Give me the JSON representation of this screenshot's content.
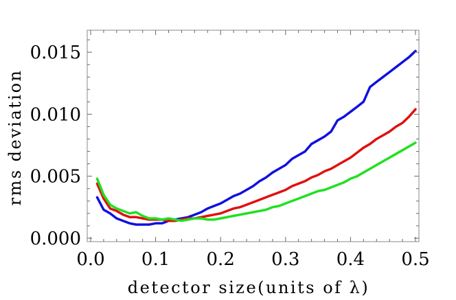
{
  "chart_data": {
    "type": "line",
    "title": "",
    "xlabel": "detector size(units of λ)",
    "ylabel": "rms deviation",
    "xlim": [
      0.0,
      0.5
    ],
    "ylim": [
      0.0,
      0.0165
    ],
    "x_ticks": [
      0.0,
      0.1,
      0.2,
      0.3,
      0.4,
      0.5
    ],
    "x_tick_labels": [
      "0.0",
      "0.1",
      "0.2",
      "0.3",
      "0.4",
      "0.5"
    ],
    "y_ticks": [
      0.0,
      0.005,
      0.01,
      0.015
    ],
    "y_tick_labels": [
      "0.000",
      "0.005",
      "0.010",
      "0.015"
    ],
    "grid": false,
    "legend": "none",
    "x": [
      0.01,
      0.02,
      0.03,
      0.04,
      0.05,
      0.06,
      0.07,
      0.08,
      0.09,
      0.1,
      0.11,
      0.12,
      0.13,
      0.14,
      0.15,
      0.16,
      0.17,
      0.18,
      0.19,
      0.2,
      0.21,
      0.22,
      0.23,
      0.24,
      0.25,
      0.26,
      0.27,
      0.28,
      0.29,
      0.3,
      0.31,
      0.32,
      0.33,
      0.34,
      0.35,
      0.36,
      0.37,
      0.38,
      0.39,
      0.4,
      0.41,
      0.42,
      0.43,
      0.44,
      0.45,
      0.46,
      0.47,
      0.48,
      0.49,
      0.5
    ],
    "series": [
      {
        "color": "#1010e0",
        "values": [
          0.0033,
          0.0023,
          0.002,
          0.0016,
          0.0014,
          0.0012,
          0.0011,
          0.0011,
          0.0011,
          0.0012,
          0.0012,
          0.0014,
          0.0015,
          0.0016,
          0.0017,
          0.0019,
          0.0021,
          0.0024,
          0.0026,
          0.0028,
          0.0031,
          0.0034,
          0.0036,
          0.0039,
          0.0042,
          0.0046,
          0.0049,
          0.0053,
          0.0056,
          0.0059,
          0.0064,
          0.0067,
          0.007,
          0.0076,
          0.0079,
          0.0082,
          0.0086,
          0.0095,
          0.0098,
          0.0102,
          0.0106,
          0.011,
          0.0122,
          0.0126,
          0.013,
          0.0134,
          0.0138,
          0.0142,
          0.0146,
          0.0151
        ]
      },
      {
        "color": "#e01010",
        "values": [
          0.0044,
          0.0032,
          0.0024,
          0.0022,
          0.0019,
          0.0017,
          0.0017,
          0.0016,
          0.0015,
          0.0015,
          0.0015,
          0.0014,
          0.0014,
          0.0015,
          0.0016,
          0.0016,
          0.0017,
          0.0018,
          0.0019,
          0.002,
          0.0022,
          0.0024,
          0.0025,
          0.0027,
          0.0029,
          0.0031,
          0.0033,
          0.0035,
          0.0037,
          0.0039,
          0.0042,
          0.0044,
          0.0046,
          0.0049,
          0.0051,
          0.0054,
          0.0056,
          0.0059,
          0.0062,
          0.0065,
          0.0069,
          0.0073,
          0.0076,
          0.008,
          0.0083,
          0.0086,
          0.009,
          0.0093,
          0.0098,
          0.0104
        ]
      },
      {
        "color": "#20e020",
        "values": [
          0.0048,
          0.0035,
          0.0027,
          0.0024,
          0.0022,
          0.002,
          0.0021,
          0.0018,
          0.0016,
          0.0016,
          0.0015,
          0.0016,
          0.0015,
          0.0014,
          0.0015,
          0.0016,
          0.0016,
          0.0015,
          0.0015,
          0.0016,
          0.0017,
          0.0018,
          0.0019,
          0.002,
          0.0021,
          0.0022,
          0.0023,
          0.0025,
          0.0026,
          0.0028,
          0.003,
          0.0032,
          0.0034,
          0.0036,
          0.0038,
          0.0039,
          0.0041,
          0.0043,
          0.0045,
          0.0048,
          0.005,
          0.0053,
          0.0056,
          0.0059,
          0.0062,
          0.0065,
          0.0068,
          0.0071,
          0.0074,
          0.0077
        ]
      }
    ]
  }
}
